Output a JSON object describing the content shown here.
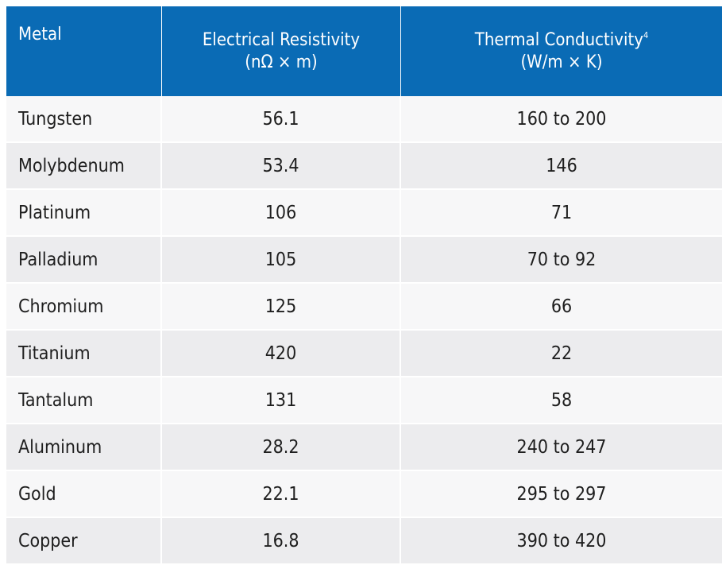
{
  "table": {
    "headers": {
      "metal": "Metal",
      "resistivity_line1": "Electrical Resistivity",
      "resistivity_line2": "(nΩ × m)",
      "conductivity_line1": "Thermal Conductivity",
      "conductivity_footnote": "4",
      "conductivity_line2": "(W/m × K)"
    },
    "rows": [
      {
        "metal": "Tungsten",
        "resistivity": "56.1",
        "conductivity": "160 to 200"
      },
      {
        "metal": "Molybdenum",
        "resistivity": "53.4",
        "conductivity": "146"
      },
      {
        "metal": "Platinum",
        "resistivity": "106",
        "conductivity": "71"
      },
      {
        "metal": "Palladium",
        "resistivity": "105",
        "conductivity": "70 to 92"
      },
      {
        "metal": "Chromium",
        "resistivity": "125",
        "conductivity": "66"
      },
      {
        "metal": "Titanium",
        "resistivity": "420",
        "conductivity": "22"
      },
      {
        "metal": "Tantalum",
        "resistivity": "131",
        "conductivity": "58"
      },
      {
        "metal": "Aluminum",
        "resistivity": "28.2",
        "conductivity": "240 to 247"
      },
      {
        "metal": "Gold",
        "resistivity": "22.1",
        "conductivity": "295 to 297"
      },
      {
        "metal": "Copper",
        "resistivity": "16.8",
        "conductivity": "390 to 420"
      }
    ]
  },
  "colors": {
    "header_background": "#0a6bb5",
    "header_text": "#ffffff",
    "row_odd": "#f7f7f8",
    "row_even": "#ececee",
    "body_text": "#1e1e1e"
  }
}
